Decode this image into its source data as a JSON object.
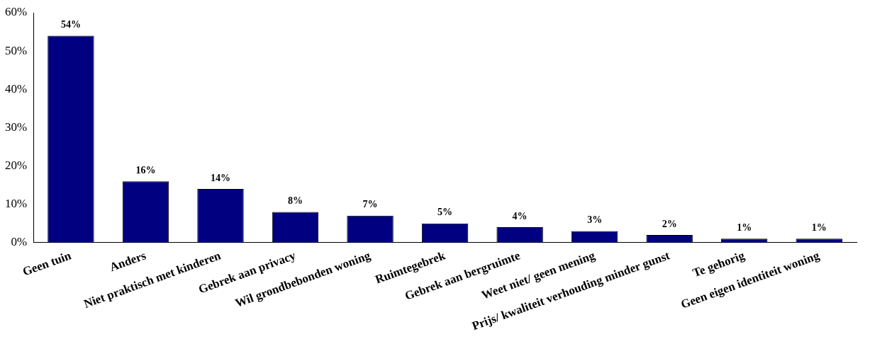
{
  "chart_data": {
    "type": "bar",
    "categories": [
      "Geen tuin",
      "Anders",
      "Niet praktisch met kinderen",
      "Gebrek aan privacy",
      "Wil grondbebonden woning",
      "Ruimtegebrek",
      "Gebrek aan bergruimte",
      "Weet niet/ geen mening",
      "Prijs/ kwaliteit verhouding minder gunst",
      "Te gehorig",
      "Geen eigen identiteit woning"
    ],
    "values": [
      54,
      16,
      14,
      8,
      7,
      5,
      4,
      3,
      2,
      1,
      1
    ],
    "value_labels": [
      "54%",
      "16%",
      "14%",
      "8%",
      "7%",
      "5%",
      "4%",
      "3%",
      "2%",
      "1%",
      "1%"
    ],
    "color": "#000080",
    "ylim": [
      0,
      60
    ],
    "yticks": [
      {
        "value": 0,
        "label": "0%"
      },
      {
        "value": 10,
        "label": "10%"
      },
      {
        "value": 20,
        "label": "20%"
      },
      {
        "value": 30,
        "label": "30%"
      },
      {
        "value": 40,
        "label": "40%"
      },
      {
        "value": 50,
        "label": "50%"
      },
      {
        "value": 60,
        "label": "60%"
      }
    ],
    "grid": false,
    "legend": false
  }
}
